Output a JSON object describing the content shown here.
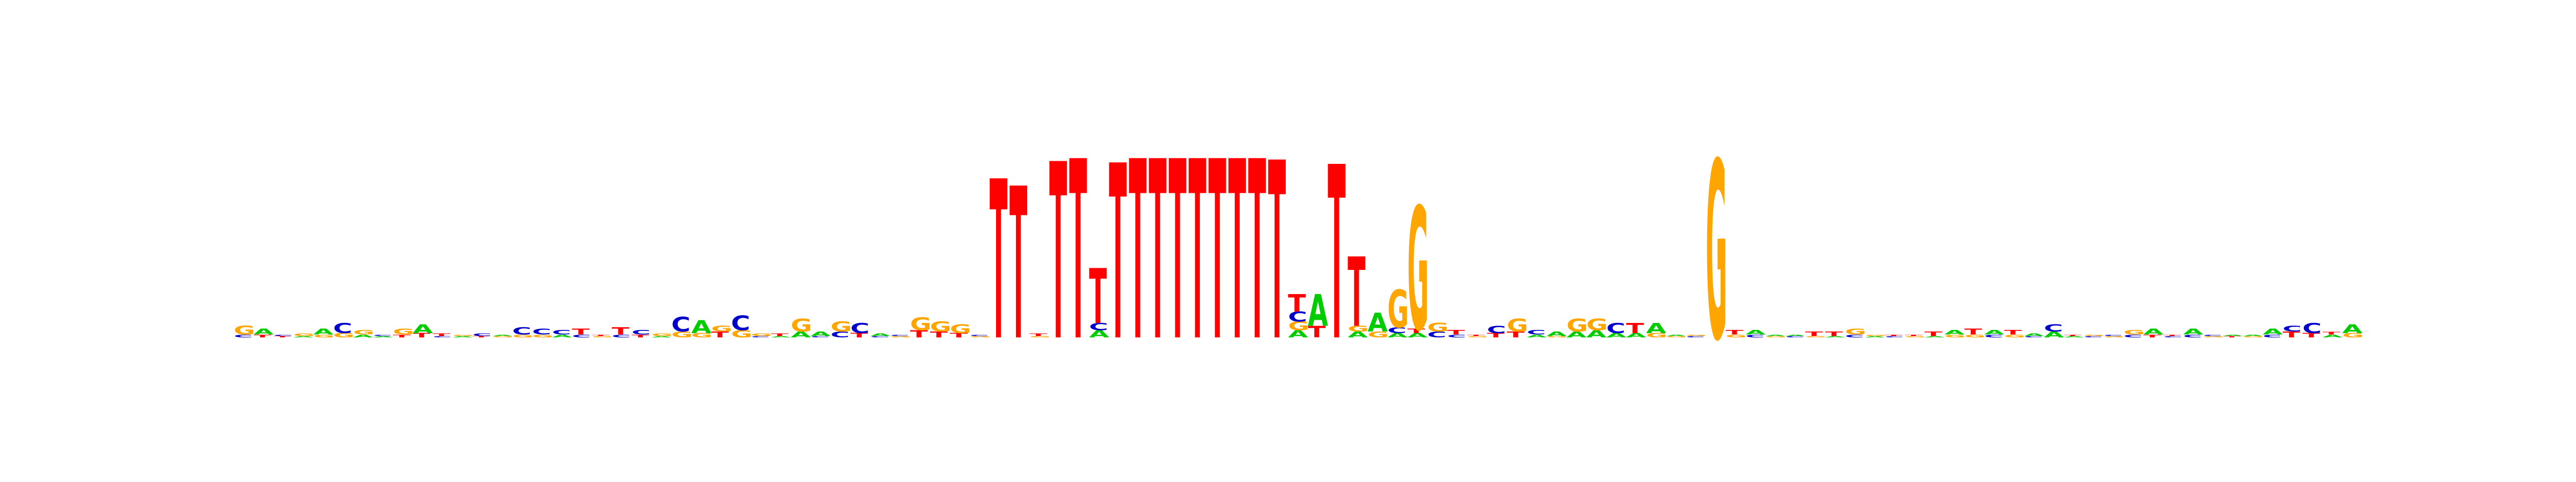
{
  "chart_data": {
    "type": "sequence-logo",
    "title": "",
    "xlabel": "",
    "ylabel": "",
    "alphabet": [
      "A",
      "C",
      "G",
      "T"
    ],
    "colors": {
      "A": "#00cc00",
      "C": "#0000cc",
      "G": "#ffa500",
      "T": "#ff0000"
    },
    "columns": [
      {
        "position": 1,
        "top": "G",
        "height": 0.08,
        "letters": {
          "G": 0.06,
          "C": 0.02
        }
      },
      {
        "position": 2,
        "top": "A",
        "height": 0.06,
        "letters": {
          "A": 0.04,
          "T": 0.02
        }
      },
      {
        "position": 3,
        "top": "T",
        "height": 0.02,
        "letters": {
          "T": 0.01,
          "C": 0.01
        }
      },
      {
        "position": 4,
        "top": "G",
        "height": 0.03,
        "letters": {
          "G": 0.02,
          "A": 0.01
        }
      },
      {
        "position": 5,
        "top": "A",
        "height": 0.06,
        "letters": {
          "A": 0.04,
          "G": 0.02
        }
      },
      {
        "position": 6,
        "top": "C",
        "height": 0.1,
        "letters": {
          "C": 0.07,
          "G": 0.03
        }
      },
      {
        "position": 7,
        "top": "G",
        "height": 0.05,
        "letters": {
          "G": 0.03,
          "A": 0.02
        }
      },
      {
        "position": 8,
        "top": "A",
        "height": 0.02,
        "letters": {
          "A": 0.01,
          "C": 0.01
        }
      },
      {
        "position": 9,
        "top": "G",
        "height": 0.06,
        "letters": {
          "G": 0.04,
          "T": 0.02
        }
      },
      {
        "position": 10,
        "top": "A",
        "height": 0.09,
        "letters": {
          "A": 0.06,
          "T": 0.03
        }
      },
      {
        "position": 11,
        "top": "T",
        "height": 0.03,
        "letters": {
          "T": 0.02,
          "C": 0.01
        }
      },
      {
        "position": 12,
        "top": "A",
        "height": 0.02,
        "letters": {
          "A": 0.01,
          "G": 0.01
        }
      },
      {
        "position": 13,
        "top": "C",
        "height": 0.03,
        "letters": {
          "C": 0.02,
          "T": 0.01
        }
      },
      {
        "position": 14,
        "top": "G",
        "height": 0.02,
        "letters": {
          "G": 0.01,
          "A": 0.01
        }
      },
      {
        "position": 15,
        "top": "C",
        "height": 0.07,
        "letters": {
          "C": 0.05,
          "G": 0.02
        }
      },
      {
        "position": 16,
        "top": "C",
        "height": 0.06,
        "letters": {
          "C": 0.04,
          "G": 0.02
        }
      },
      {
        "position": 17,
        "top": "C",
        "height": 0.05,
        "letters": {
          "C": 0.03,
          "A": 0.02
        }
      },
      {
        "position": 18,
        "top": "T",
        "height": 0.06,
        "letters": {
          "T": 0.04,
          "C": 0.02
        }
      },
      {
        "position": 19,
        "top": "G",
        "height": 0.02,
        "letters": {
          "G": 0.01,
          "T": 0.01
        }
      },
      {
        "position": 20,
        "top": "T",
        "height": 0.07,
        "letters": {
          "T": 0.05,
          "C": 0.02
        }
      },
      {
        "position": 21,
        "top": "C",
        "height": 0.05,
        "letters": {
          "C": 0.03,
          "T": 0.02
        }
      },
      {
        "position": 22,
        "top": "G",
        "height": 0.03,
        "letters": {
          "G": 0.02,
          "A": 0.01
        }
      },
      {
        "position": 23,
        "top": "C",
        "height": 0.14,
        "letters": {
          "C": 0.1,
          "G": 0.04
        }
      },
      {
        "position": 24,
        "top": "A",
        "height": 0.12,
        "letters": {
          "A": 0.09,
          "G": 0.03
        }
      },
      {
        "position": 25,
        "top": "T",
        "height": 0.08,
        "letters": {
          "T": 0.04,
          "G": 0.04
        }
      },
      {
        "position": 26,
        "top": "C",
        "height": 0.15,
        "letters": {
          "C": 0.1,
          "G": 0.05
        }
      },
      {
        "position": 27,
        "top": "G",
        "height": 0.03,
        "letters": {
          "G": 0.02,
          "C": 0.01
        }
      },
      {
        "position": 28,
        "top": "T",
        "height": 0.03,
        "letters": {
          "T": 0.02,
          "A": 0.01
        }
      },
      {
        "position": 29,
        "top": "G",
        "height": 0.13,
        "letters": {
          "G": 0.09,
          "A": 0.04
        }
      },
      {
        "position": 30,
        "top": "A",
        "height": 0.04,
        "letters": {
          "A": 0.03,
          "C": 0.01
        }
      },
      {
        "position": 31,
        "top": "G",
        "height": 0.11,
        "letters": {
          "G": 0.07,
          "C": 0.04
        }
      },
      {
        "position": 32,
        "top": "C",
        "height": 0.1,
        "letters": {
          "C": 0.07,
          "T": 0.03
        }
      },
      {
        "position": 33,
        "top": "A",
        "height": 0.03,
        "letters": {
          "A": 0.02,
          "C": 0.01
        }
      },
      {
        "position": 34,
        "top": "G",
        "height": 0.02,
        "letters": {
          "G": 0.01,
          "C": 0.01
        }
      },
      {
        "position": 35,
        "top": "G",
        "height": 0.14,
        "letters": {
          "G": 0.09,
          "T": 0.05
        }
      },
      {
        "position": 36,
        "top": "G",
        "height": 0.11,
        "letters": {
          "G": 0.07,
          "T": 0.04
        }
      },
      {
        "position": 37,
        "top": "G",
        "height": 0.09,
        "letters": {
          "G": 0.06,
          "T": 0.03
        }
      },
      {
        "position": 38,
        "top": "G",
        "height": 0.02,
        "letters": {
          "G": 0.01,
          "C": 0.01
        }
      },
      {
        "position": 39,
        "top": "T",
        "height": 1.1,
        "letters": {
          "T": 1.1
        }
      },
      {
        "position": 40,
        "top": "T",
        "height": 1.05,
        "letters": {
          "T": 1.05
        }
      },
      {
        "position": 41,
        "top": "T",
        "height": 0.03,
        "letters": {
          "T": 0.02,
          "G": 0.01
        }
      },
      {
        "position": 42,
        "top": "T",
        "height": 1.22,
        "letters": {
          "T": 1.22
        }
      },
      {
        "position": 43,
        "top": "T",
        "height": 1.24,
        "letters": {
          "T": 1.24
        }
      },
      {
        "position": 44,
        "top": "T",
        "height": 0.48,
        "letters": {
          "T": 0.38,
          "A": 0.05,
          "C": 0.05
        }
      },
      {
        "position": 45,
        "top": "T",
        "height": 1.21,
        "letters": {
          "T": 1.21
        }
      },
      {
        "position": 46,
        "top": "T",
        "height": 1.24,
        "letters": {
          "T": 1.24
        }
      },
      {
        "position": 47,
        "top": "T",
        "height": 1.24,
        "letters": {
          "T": 1.24
        }
      },
      {
        "position": 48,
        "top": "T",
        "height": 1.24,
        "letters": {
          "T": 1.24
        }
      },
      {
        "position": 49,
        "top": "T",
        "height": 1.24,
        "letters": {
          "T": 1.24
        }
      },
      {
        "position": 50,
        "top": "T",
        "height": 1.24,
        "letters": {
          "T": 1.24
        }
      },
      {
        "position": 51,
        "top": "T",
        "height": 1.24,
        "letters": {
          "T": 1.24
        }
      },
      {
        "position": 52,
        "top": "T",
        "height": 1.24,
        "letters": {
          "T": 1.24
        }
      },
      {
        "position": 53,
        "top": "T",
        "height": 1.23,
        "letters": {
          "T": 1.23
        }
      },
      {
        "position": 54,
        "top": "T",
        "height": 0.3,
        "letters": {
          "T": 0.12,
          "C": 0.07,
          "A": 0.05,
          "G": 0.06
        }
      },
      {
        "position": 55,
        "top": "A",
        "height": 0.3,
        "letters": {
          "A": 0.22,
          "T": 0.08
        }
      },
      {
        "position": 56,
        "top": "T",
        "height": 1.2,
        "letters": {
          "T": 1.2
        }
      },
      {
        "position": 57,
        "top": "T",
        "height": 0.56,
        "letters": {
          "T": 0.48,
          "A": 0.04,
          "G": 0.04
        }
      },
      {
        "position": 58,
        "top": "A",
        "height": 0.17,
        "letters": {
          "A": 0.13,
          "G": 0.04
        }
      },
      {
        "position": 59,
        "top": "G",
        "height": 0.33,
        "letters": {
          "G": 0.26,
          "C": 0.04,
          "A": 0.03
        }
      },
      {
        "position": 60,
        "top": "G",
        "height": 0.91,
        "letters": {
          "G": 0.85,
          "A": 0.03,
          "T": 0.03
        }
      },
      {
        "position": 61,
        "top": "G",
        "height": 0.1,
        "letters": {
          "G": 0.06,
          "C": 0.04
        }
      },
      {
        "position": 62,
        "top": "T",
        "height": 0.05,
        "letters": {
          "T": 0.03,
          "C": 0.02
        }
      },
      {
        "position": 63,
        "top": "G",
        "height": 0.02,
        "letters": {
          "G": 0.01,
          "T": 0.01
        }
      },
      {
        "position": 64,
        "top": "C",
        "height": 0.08,
        "letters": {
          "C": 0.05,
          "T": 0.03
        }
      },
      {
        "position": 65,
        "top": "G",
        "height": 0.13,
        "letters": {
          "G": 0.09,
          "T": 0.04
        }
      },
      {
        "position": 66,
        "top": "C",
        "height": 0.05,
        "letters": {
          "C": 0.03,
          "A": 0.02
        }
      },
      {
        "position": 67,
        "top": "A",
        "height": 0.04,
        "letters": {
          "A": 0.03,
          "G": 0.01
        }
      },
      {
        "position": 68,
        "top": "G",
        "height": 0.13,
        "letters": {
          "G": 0.09,
          "A": 0.04
        }
      },
      {
        "position": 69,
        "top": "G",
        "height": 0.13,
        "letters": {
          "G": 0.08,
          "A": 0.05
        }
      },
      {
        "position": 70,
        "top": "C",
        "height": 0.1,
        "letters": {
          "C": 0.07,
          "A": 0.03
        }
      },
      {
        "position": 71,
        "top": "T",
        "height": 0.1,
        "letters": {
          "T": 0.07,
          "A": 0.03
        }
      },
      {
        "position": 72,
        "top": "A",
        "height": 0.1,
        "letters": {
          "A": 0.07,
          "G": 0.03
        }
      },
      {
        "position": 73,
        "top": "G",
        "height": 0.02,
        "letters": {
          "G": 0.01,
          "A": 0.01
        }
      },
      {
        "position": 74,
        "top": "C",
        "height": 0.02,
        "letters": {
          "C": 0.01,
          "G": 0.01
        }
      },
      {
        "position": 75,
        "top": "G",
        "height": 1.23,
        "letters": {
          "G": 1.23
        }
      },
      {
        "position": 76,
        "top": "T",
        "height": 0.05,
        "letters": {
          "T": 0.03,
          "G": 0.02
        }
      },
      {
        "position": 77,
        "top": "A",
        "height": 0.05,
        "letters": {
          "A": 0.03,
          "C": 0.02
        }
      },
      {
        "position": 78,
        "top": "G",
        "height": 0.02,
        "letters": {
          "G": 0.01,
          "A": 0.01
        }
      },
      {
        "position": 79,
        "top": "C",
        "height": 0.02,
        "letters": {
          "C": 0.01,
          "A": 0.01
        }
      },
      {
        "position": 80,
        "top": "T",
        "height": 0.04,
        "letters": {
          "T": 0.03,
          "G": 0.01
        }
      },
      {
        "position": 81,
        "top": "T",
        "height": 0.04,
        "letters": {
          "T": 0.03,
          "A": 0.01
        }
      },
      {
        "position": 82,
        "top": "G",
        "height": 0.06,
        "letters": {
          "G": 0.04,
          "C": 0.02
        }
      },
      {
        "position": 83,
        "top": "A",
        "height": 0.02,
        "letters": {
          "A": 0.01,
          "G": 0.01
        }
      },
      {
        "position": 84,
        "top": "C",
        "height": 0.02,
        "letters": {
          "C": 0.01,
          "T": 0.01
        }
      },
      {
        "position": 85,
        "top": "G",
        "height": 0.02,
        "letters": {
          "G": 0.01,
          "T": 0.01
        }
      },
      {
        "position": 86,
        "top": "T",
        "height": 0.04,
        "letters": {
          "T": 0.03,
          "A": 0.01
        }
      },
      {
        "position": 87,
        "top": "A",
        "height": 0.05,
        "letters": {
          "A": 0.03,
          "G": 0.02
        }
      },
      {
        "position": 88,
        "top": "T",
        "height": 0.06,
        "letters": {
          "T": 0.04,
          "G": 0.02
        }
      },
      {
        "position": 89,
        "top": "A",
        "height": 0.05,
        "letters": {
          "A": 0.03,
          "C": 0.02
        }
      },
      {
        "position": 90,
        "top": "T",
        "height": 0.05,
        "letters": {
          "T": 0.03,
          "G": 0.02
        }
      },
      {
        "position": 91,
        "top": "A",
        "height": 0.03,
        "letters": {
          "A": 0.02,
          "C": 0.01
        }
      },
      {
        "position": 92,
        "top": "C",
        "height": 0.09,
        "letters": {
          "C": 0.05,
          "A": 0.04
        }
      },
      {
        "position": 93,
        "top": "A",
        "height": 0.02,
        "letters": {
          "A": 0.01,
          "T": 0.01
        }
      },
      {
        "position": 94,
        "top": "C",
        "height": 0.02,
        "letters": {
          "C": 0.01,
          "G": 0.01
        }
      },
      {
        "position": 95,
        "top": "G",
        "height": 0.02,
        "letters": {
          "G": 0.01,
          "C": 0.01
        }
      },
      {
        "position": 96,
        "top": "G",
        "height": 0.05,
        "letters": {
          "G": 0.03,
          "C": 0.02
        }
      },
      {
        "position": 97,
        "top": "A",
        "height": 0.06,
        "letters": {
          "A": 0.04,
          "T": 0.02
        }
      },
      {
        "position": 98,
        "top": "C",
        "height": 0.02,
        "letters": {
          "C": 0.01,
          "T": 0.01
        }
      },
      {
        "position": 99,
        "top": "A",
        "height": 0.06,
        "letters": {
          "A": 0.04,
          "C": 0.02
        }
      },
      {
        "position": 100,
        "top": "G",
        "height": 0.02,
        "letters": {
          "G": 0.01,
          "C": 0.01
        }
      },
      {
        "position": 101,
        "top": "T",
        "height": 0.02,
        "letters": {
          "T": 0.01,
          "A": 0.01
        }
      },
      {
        "position": 102,
        "top": "G",
        "height": 0.02,
        "letters": {
          "G": 0.01,
          "A": 0.01
        }
      },
      {
        "position": 103,
        "top": "A",
        "height": 0.06,
        "letters": {
          "A": 0.04,
          "C": 0.02
        }
      },
      {
        "position": 104,
        "top": "T",
        "height": 0.08,
        "letters": {
          "T": 0.04,
          "C": 0.04
        }
      },
      {
        "position": 105,
        "top": "C",
        "height": 0.1,
        "letters": {
          "C": 0.07,
          "T": 0.03
        }
      },
      {
        "position": 106,
        "top": "A",
        "height": 0.04,
        "letters": {
          "A": 0.02,
          "T": 0.02
        }
      },
      {
        "position": 107,
        "top": "A",
        "height": 0.09,
        "letters": {
          "A": 0.06,
          "G": 0.03
        }
      }
    ]
  }
}
